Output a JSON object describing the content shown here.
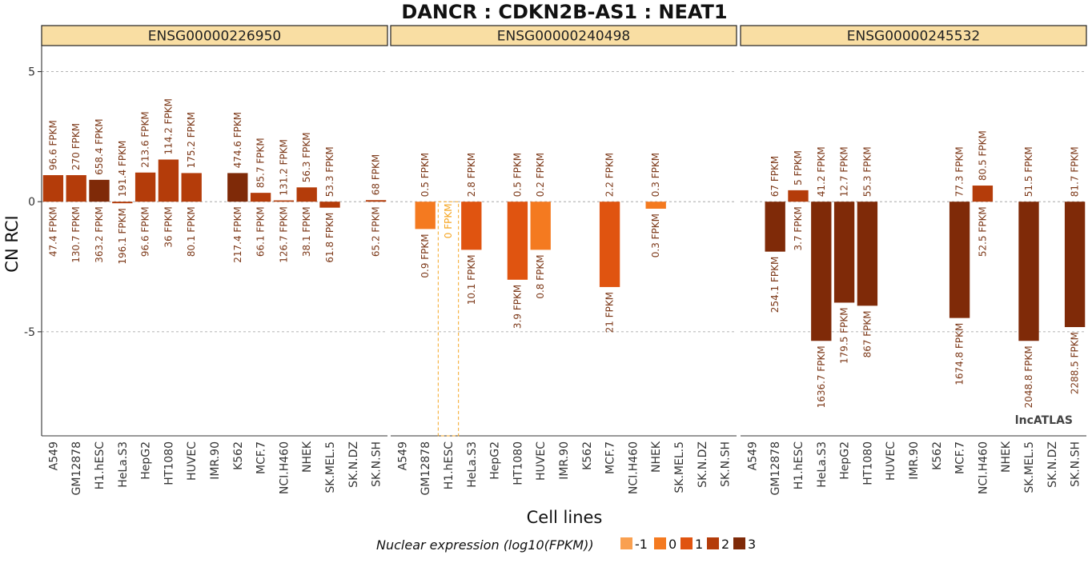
{
  "chart_data": {
    "type": "bar",
    "title": "DANCR : CDKN2B-AS1 : NEAT1",
    "xlabel": "Cell lines",
    "ylabel": "CN RCI",
    "ylim": [
      -9.0,
      6.0
    ],
    "yticks": [
      5,
      0,
      -5
    ],
    "ytick_labels": [
      "5",
      "0",
      "-5"
    ],
    "grid": "dashed horizontal at y ticks",
    "categories": [
      "A549",
      "GM12878",
      "H1.hESC",
      "HeLa.S3",
      "HepG2",
      "HT1080",
      "HUVEC",
      "IMR.90",
      "K562",
      "MCF.7",
      "NCI.H460",
      "NHEK",
      "SK.MEL.5",
      "SK.N.DZ",
      "SK.N.SH"
    ],
    "legend": {
      "title": "Nuclear expression (log10(FPKM))",
      "position": "bottom",
      "levels": [
        "-1",
        "0",
        "1",
        "2",
        "3"
      ],
      "colors": [
        "#f9a050",
        "#f47a20",
        "#e05410",
        "#b43c0a",
        "#7f2a08"
      ]
    },
    "panels": [
      {
        "strip": "ENSG00000226950",
        "values": [
          1.02,
          1.02,
          0.84,
          -0.06,
          1.12,
          1.62,
          1.1,
          null,
          1.1,
          0.34,
          0.05,
          0.55,
          -0.23,
          null,
          0.06
        ],
        "nuclear_level": [
          2,
          2,
          3,
          2,
          2,
          2,
          2,
          null,
          3,
          2,
          2,
          2,
          2,
          null,
          2
        ],
        "top_labels": [
          "96.6 FPKM",
          "270 FPKM",
          "658.4 FPKM",
          "191.4 FPKM",
          "213.6 FPKM",
          "114.2 FPKM",
          "175.2 FPKM",
          "",
          "474.6 FPKM",
          "85.7 FPKM",
          "131.2 FPKM",
          "56.3 FPKM",
          "53.3 FPKM",
          "",
          "68 FPKM"
        ],
        "bottom_labels": [
          "47.4 FPKM",
          "130.7 FPKM",
          "363.2 FPKM",
          "196.1 FPKM",
          "96.6 FPKM",
          "36 FPKM",
          "80.1 FPKM",
          "",
          "217.4 FPKM",
          "66.1 FPKM",
          "126.7 FPKM",
          "38.1 FPKM",
          "61.8 FPKM",
          "",
          "65.2 FPKM"
        ]
      },
      {
        "strip": "ENSG00000240498",
        "values": [
          null,
          -1.05,
          null,
          -1.85,
          null,
          -3.0,
          -1.85,
          null,
          null,
          -3.28,
          null,
          -0.27,
          null,
          null,
          null
        ],
        "nuclear_level": [
          null,
          0,
          null,
          1,
          null,
          1,
          0,
          null,
          null,
          1,
          null,
          0,
          null,
          null,
          null
        ],
        "top_labels": [
          "",
          "0.5 FPKM",
          "0 FPKM",
          "2.8 FPKM",
          "",
          "0.5 FPKM",
          "0.2 FPKM",
          "",
          "",
          "2.2 FPKM",
          "",
          "0.3 FPKM",
          "",
          "",
          ""
        ],
        "bottom_labels": [
          "",
          "0.9 FPKM",
          "",
          "10.1 FPKM",
          "",
          "3.9 FPKM",
          "0.8 FPKM",
          "",
          "",
          "21 FPKM",
          "",
          "0.3 FPKM",
          "",
          "",
          ""
        ],
        "highlight_column": "H1.hESC",
        "highlight_color": "#f5a623"
      },
      {
        "strip": "ENSG00000245532",
        "values": [
          null,
          -1.92,
          0.44,
          -5.35,
          -3.88,
          -4.0,
          null,
          null,
          null,
          -4.47,
          0.62,
          null,
          -5.35,
          null,
          -4.82
        ],
        "nuclear_level": [
          null,
          3,
          2,
          3,
          3,
          3,
          null,
          null,
          null,
          3,
          2,
          null,
          3,
          null,
          3
        ],
        "top_labels": [
          "",
          "67 FPKM",
          "5 FPKM",
          "41.2 FPKM",
          "12.7 FPKM",
          "55.3 FPKM",
          "",
          "",
          "",
          "77.3 FPKM",
          "80.5 FPKM",
          "",
          "51.5 FPKM",
          "",
          "81.7 FPKM"
        ],
        "bottom_labels": [
          "",
          "254.1 FPKM",
          "3.7 FPKM",
          "1636.7 FPKM",
          "179.5 FPKM",
          "867 FPKM",
          "",
          "",
          "",
          "1674.8 FPKM",
          "52.5 FPKM",
          "",
          "2048.8 FPKM",
          "",
          "2288.5 FPKM"
        ]
      }
    ],
    "label_colors": {
      "top": "#7d3a1a",
      "bottom": "#7d3a1a"
    },
    "watermark": "lncATLAS"
  }
}
